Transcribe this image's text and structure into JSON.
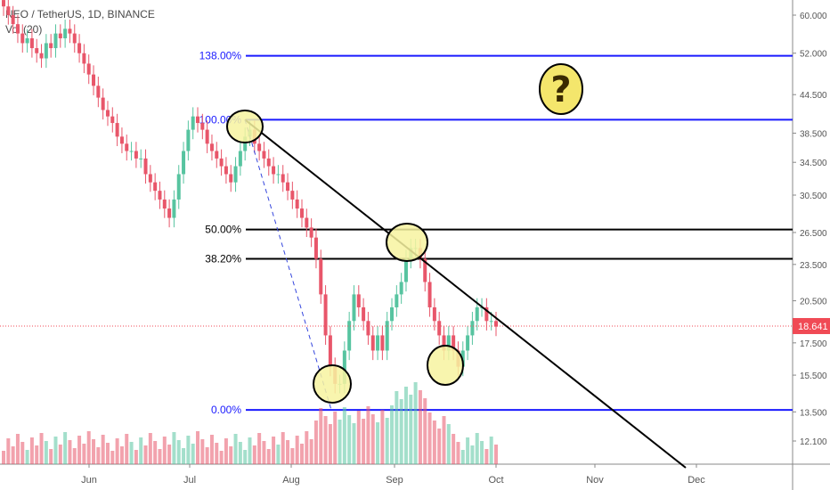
{
  "legend": {
    "symbol": "NEO / TetherUS, 1D, BINANCE",
    "volume": "Vol (20)"
  },
  "colors": {
    "up": "#57c4a0",
    "down": "#e8566a",
    "fib_blue": "#1a1aff",
    "fib_black": "#000000",
    "price_tag": "#f04a55",
    "highlight_fill": "#f7f3a0"
  },
  "chart_data": {
    "type": "candlestick",
    "instrument": "NEO / TetherUS",
    "timeframe": "1D",
    "exchange": "BINANCE",
    "x_labels": [
      "Jun",
      "Jul",
      "Aug",
      "Sep",
      "Oct",
      "Nov",
      "Dec"
    ],
    "y_ticks": [
      "60.000",
      "52.000",
      "44.500",
      "38.500",
      "34.500",
      "30.500",
      "26.500",
      "23.500",
      "20.500",
      "17.500",
      "15.500",
      "13.500",
      "12.100"
    ],
    "last_price": "18.641",
    "fib_levels": [
      {
        "label": "138.00%",
        "price": 51.5,
        "color": "blue"
      },
      {
        "label": "100.00%",
        "price": 40.5,
        "color": "blue"
      },
      {
        "label": "50.00%",
        "price": 26.8,
        "color": "black"
      },
      {
        "label": "38.20%",
        "price": 24.0,
        "color": "black"
      },
      {
        "label": "0.00%",
        "price": 13.6,
        "color": "blue"
      }
    ],
    "candles_close": [
      62,
      60,
      58,
      56,
      54,
      55,
      53,
      52,
      51,
      54,
      53,
      56,
      55,
      57,
      56,
      54,
      52,
      50,
      48,
      46,
      44,
      42,
      41,
      40,
      38,
      37,
      36,
      36,
      35,
      35,
      33,
      32,
      31,
      30,
      29,
      28,
      30,
      33,
      36,
      39,
      41,
      40,
      39,
      37,
      36,
      35,
      34,
      33,
      32,
      34,
      36,
      38,
      39,
      37,
      36,
      35,
      34,
      33,
      33,
      32,
      31,
      30,
      29,
      28,
      27,
      26,
      24,
      21,
      18,
      16,
      15,
      15,
      17,
      19,
      21,
      20,
      19,
      18,
      17,
      18,
      17,
      19,
      20,
      21,
      22,
      24,
      25,
      25,
      24,
      22,
      20,
      19,
      18,
      17,
      18,
      17,
      16,
      17,
      18,
      19,
      20,
      20,
      19,
      19,
      18.6
    ],
    "volume_note": "Vol (20)",
    "annotations": [
      "?"
    ]
  }
}
